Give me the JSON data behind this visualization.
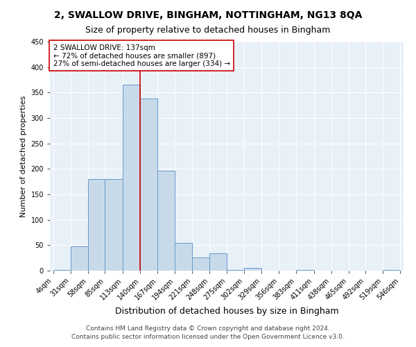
{
  "title1": "2, SWALLOW DRIVE, BINGHAM, NOTTINGHAM, NG13 8QA",
  "title2": "Size of property relative to detached houses in Bingham",
  "xlabel": "Distribution of detached houses by size in Bingham",
  "ylabel": "Number of detached properties",
  "bin_labels": [
    "4sqm",
    "31sqm",
    "58sqm",
    "85sqm",
    "113sqm",
    "140sqm",
    "167sqm",
    "194sqm",
    "221sqm",
    "248sqm",
    "275sqm",
    "302sqm",
    "329sqm",
    "356sqm",
    "383sqm",
    "411sqm",
    "438sqm",
    "465sqm",
    "492sqm",
    "519sqm",
    "546sqm"
  ],
  "bin_edges": [
    4,
    31,
    58,
    85,
    113,
    140,
    167,
    194,
    221,
    248,
    275,
    302,
    329,
    356,
    383,
    411,
    438,
    465,
    492,
    519,
    546
  ],
  "bar_heights": [
    2,
    48,
    180,
    180,
    365,
    338,
    197,
    54,
    26,
    34,
    2,
    6,
    0,
    0,
    2,
    0,
    0,
    0,
    0,
    2,
    0
  ],
  "bar_facecolor": "#c8daea",
  "bar_edgecolor": "#6699cc",
  "vline_x": 140,
  "vline_color": "#cc0000",
  "annotation_line1": "2 SWALLOW DRIVE: 137sqm",
  "annotation_line2": "← 72% of detached houses are smaller (897)",
  "annotation_line3": "27% of semi-detached houses are larger (334) →",
  "annotation_box_edgecolor": "#cc0000",
  "annotation_box_facecolor": "#ffffff",
  "ylim": [
    0,
    450
  ],
  "yticks": [
    0,
    50,
    100,
    150,
    200,
    250,
    300,
    350,
    400,
    450
  ],
  "fig_background": "#ffffff",
  "plot_background": "#e8f0f8",
  "grid_color": "#ffffff",
  "footnote": "Contains HM Land Registry data © Crown copyright and database right 2024.\nContains public sector information licensed under the Open Government Licence v3.0.",
  "title1_fontsize": 10,
  "title2_fontsize": 9,
  "xlabel_fontsize": 9,
  "ylabel_fontsize": 8,
  "tick_fontsize": 7,
  "annotation_fontsize": 7.5,
  "footnote_fontsize": 6.5
}
